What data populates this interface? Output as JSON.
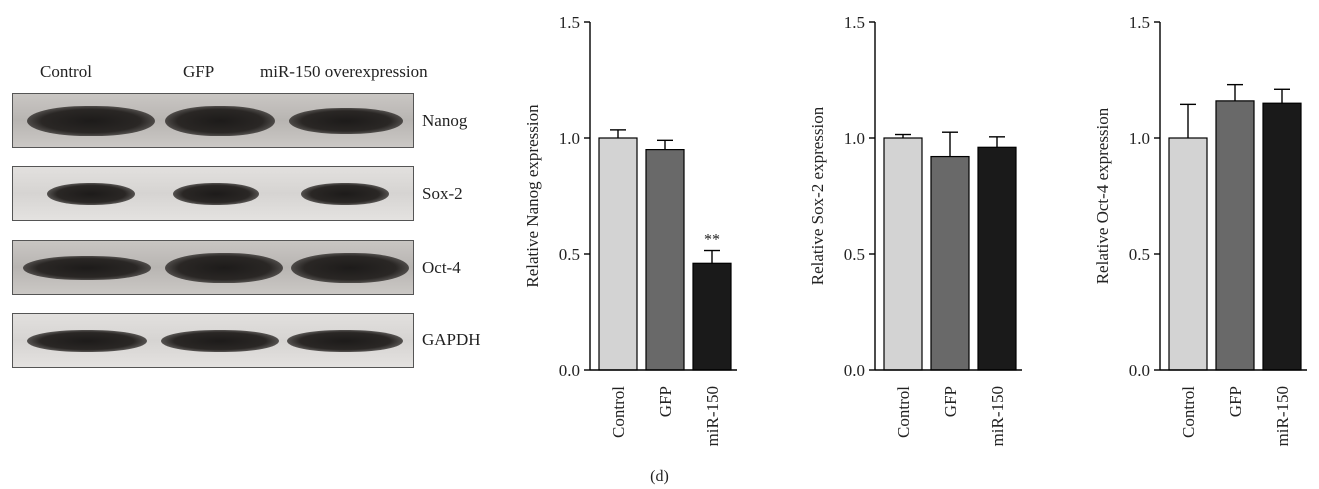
{
  "blot": {
    "lane_headers": [
      "Control",
      "GFP",
      "miR-150 overexpression"
    ],
    "rows": [
      {
        "label": "Nanog"
      },
      {
        "label": "Sox-2"
      },
      {
        "label": "Oct-4"
      },
      {
        "label": "GAPDH"
      }
    ]
  },
  "figure_label": "(d)",
  "chart_data": [
    {
      "type": "bar",
      "categories": [
        "Control",
        "GFP",
        "miR-150"
      ],
      "values": [
        1.0,
        0.95,
        0.46
      ],
      "errors": [
        0.035,
        0.04,
        0.055
      ],
      "annotations": [
        "",
        "",
        "**"
      ],
      "ylabel": "Relative Nanog expression",
      "ylim": [
        0,
        1.5
      ],
      "yticks": [
        "0.0",
        "0.5",
        "1.0",
        "1.5"
      ],
      "colors": [
        "#d3d3d3",
        "#696969",
        "#1a1a1a"
      ]
    },
    {
      "type": "bar",
      "categories": [
        "Control",
        "GFP",
        "miR-150"
      ],
      "values": [
        1.0,
        0.92,
        0.96
      ],
      "errors": [
        0.015,
        0.105,
        0.045
      ],
      "annotations": [
        "",
        "",
        ""
      ],
      "ylabel": "Relative Sox-2 expression",
      "ylim": [
        0,
        1.5
      ],
      "yticks": [
        "0.0",
        "0.5",
        "1.0",
        "1.5"
      ],
      "colors": [
        "#d3d3d3",
        "#696969",
        "#1a1a1a"
      ]
    },
    {
      "type": "bar",
      "categories": [
        "Control",
        "GFP",
        "miR-150"
      ],
      "values": [
        1.0,
        1.16,
        1.15
      ],
      "errors": [
        0.145,
        0.07,
        0.06
      ],
      "annotations": [
        "",
        "",
        ""
      ],
      "ylabel": "Relative Oct-4 expression",
      "ylim": [
        0,
        1.5
      ],
      "yticks": [
        "0.0",
        "0.5",
        "1.0",
        "1.5"
      ],
      "colors": [
        "#d3d3d3",
        "#696969",
        "#1a1a1a"
      ]
    }
  ]
}
